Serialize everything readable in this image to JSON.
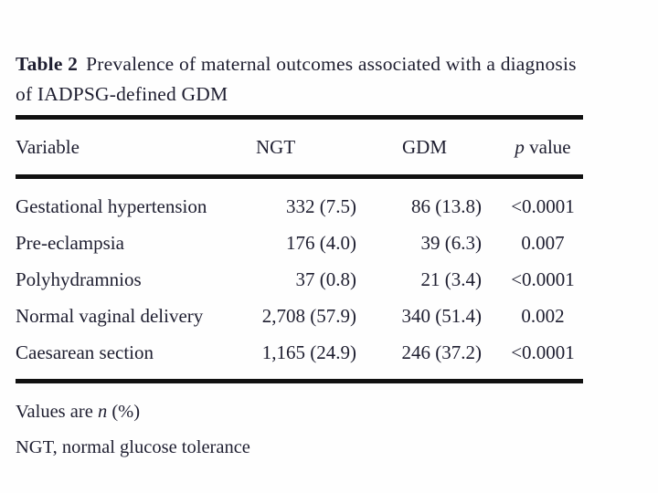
{
  "page": {
    "background": "#fefefe",
    "text_color": "#1e1e30",
    "rule_color": "#111111"
  },
  "table": {
    "caption": {
      "label": "Table 2",
      "text": "Prevalence of maternal outcomes associated with a diagnosis of IADPSG-defined GDM"
    },
    "columns": {
      "variable": "Variable",
      "ngt": "NGT",
      "gdm": "GDM",
      "p_italic": "p",
      "p_rest": " value"
    },
    "rows": [
      {
        "variable": "Gestational hypertension",
        "ngt": "332 (7.5)",
        "gdm": "86 (13.8)",
        "p": "<0.0001"
      },
      {
        "variable": "Pre-eclampsia",
        "ngt": "176 (4.0)",
        "gdm": "39 (6.3)",
        "p": "0.007"
      },
      {
        "variable": "Polyhydramnios",
        "ngt": "37 (0.8)",
        "gdm": "21 (3.4)",
        "p": "<0.0001"
      },
      {
        "variable": "Normal vaginal delivery",
        "ngt": "2,708 (57.9)",
        "gdm": "340 (51.4)",
        "p": "0.002"
      },
      {
        "variable": "Caesarean section",
        "ngt": "1,165 (24.9)",
        "gdm": "246 (37.2)",
        "p": "<0.0001"
      }
    ],
    "footnote1": {
      "prefix": "Values are ",
      "italic_n": "n",
      "suffix": " (%)"
    },
    "footnote2": "NGT, normal glucose tolerance"
  },
  "chart_data": {
    "type": "table",
    "title": "Table 2 Prevalence of maternal outcomes associated with a diagnosis of IADPSG-defined GDM",
    "columns": [
      "Variable",
      "NGT",
      "GDM",
      "p value"
    ],
    "rows": [
      [
        "Gestational hypertension",
        "332 (7.5)",
        "86 (13.8)",
        "<0.0001"
      ],
      [
        "Pre-eclampsia",
        "176 (4.0)",
        "39 (6.3)",
        "0.007"
      ],
      [
        "Polyhydramnios",
        "37 (0.8)",
        "21 (3.4)",
        "<0.0001"
      ],
      [
        "Normal vaginal delivery",
        "2,708 (57.9)",
        "340 (51.4)",
        "0.002"
      ],
      [
        "Caesarean section",
        "1,165 (24.9)",
        "246 (37.2)",
        "<0.0001"
      ]
    ],
    "notes": [
      "Values are n (%)",
      "NGT, normal glucose tolerance"
    ]
  }
}
